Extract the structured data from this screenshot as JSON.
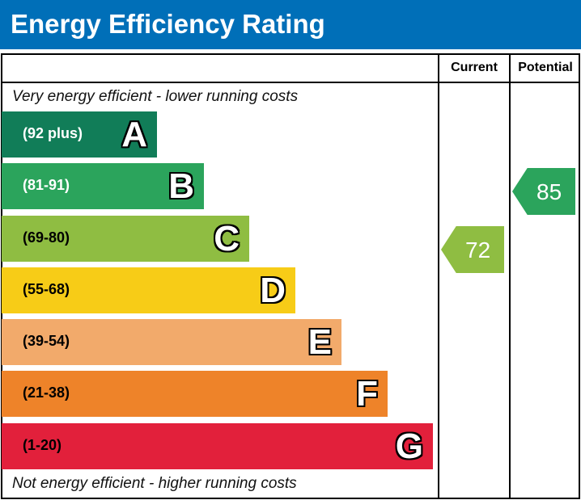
{
  "title": "Energy Efficiency Rating",
  "columns": {
    "current": "Current",
    "potential": "Potential"
  },
  "top_note": "Very energy efficient - lower running costs",
  "bottom_note": "Not energy efficient - higher running costs",
  "chart_data": {
    "type": "bar",
    "bands": [
      {
        "letter": "A",
        "range": "(92 plus)",
        "color": "#117d58",
        "text_color": "#ffffff"
      },
      {
        "letter": "B",
        "range": "(81-91)",
        "color": "#2ba45c",
        "text_color": "#ffffff"
      },
      {
        "letter": "C",
        "range": "(69-80)",
        "color": "#8fbd42",
        "text_color": "#000000"
      },
      {
        "letter": "D",
        "range": "(55-68)",
        "color": "#f7cc17",
        "text_color": "#000000"
      },
      {
        "letter": "E",
        "range": "(39-54)",
        "color": "#f2aa6b",
        "text_color": "#000000"
      },
      {
        "letter": "F",
        "range": "(21-38)",
        "color": "#ee8329",
        "text_color": "#000000"
      },
      {
        "letter": "G",
        "range": "(1-20)",
        "color": "#e2203b",
        "text_color": "#000000"
      }
    ],
    "current": {
      "value": "72",
      "band": "C",
      "color": "#8fbd42"
    },
    "potential": {
      "value": "85",
      "band": "B",
      "color": "#2ba45c"
    }
  }
}
